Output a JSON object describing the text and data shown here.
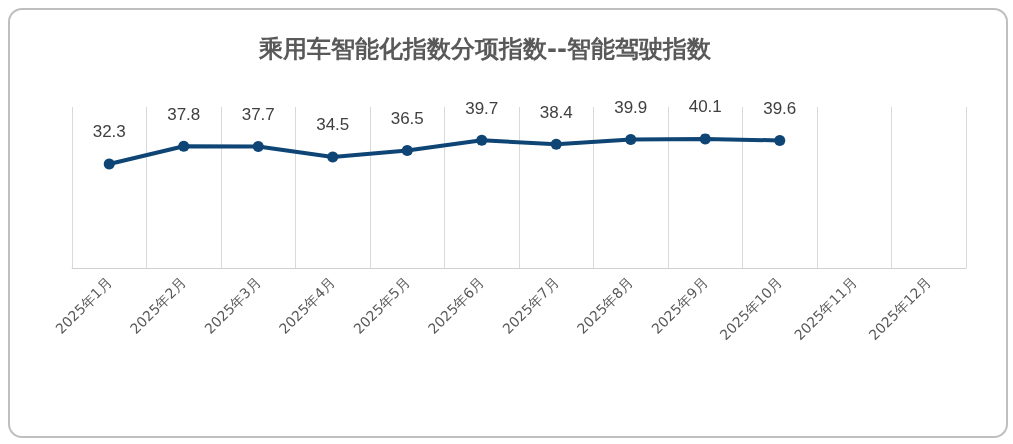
{
  "chart_data": {
    "type": "line",
    "title": "乘用车智能化指数分项指数--智能驾驶指数",
    "categories": [
      "2025年1月",
      "2025年2月",
      "2025年3月",
      "2025年4月",
      "2025年5月",
      "2025年6月",
      "2025年7月",
      "2025年8月",
      "2025年9月",
      "2025年10月",
      "2025年11月",
      "2025年12月"
    ],
    "series": [
      {
        "color": "#0e4574",
        "values": [
          32.3,
          37.8,
          37.7,
          34.5,
          36.5,
          39.7,
          38.4,
          39.9,
          40.1,
          39.6,
          null,
          null
        ]
      }
    ],
    "data_labels": true,
    "grid": "x",
    "marker": "circle",
    "line_style": "solid",
    "tick_labels": "x"
  }
}
